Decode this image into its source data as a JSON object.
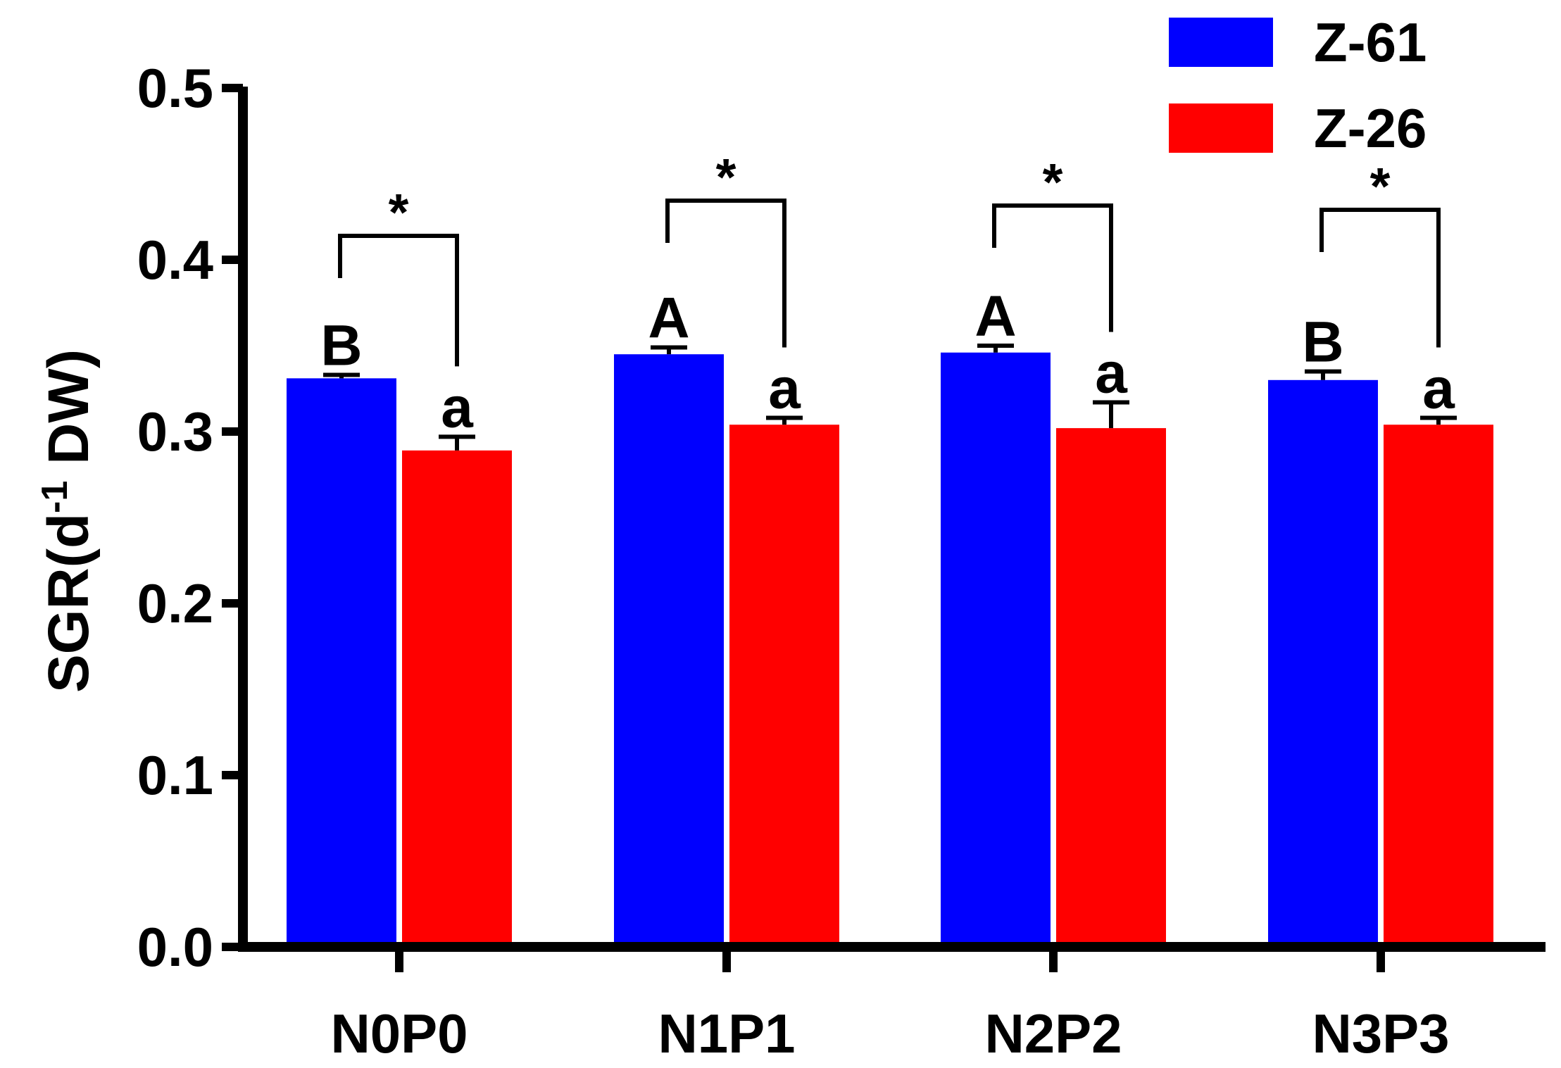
{
  "chart_data": {
    "type": "bar",
    "title": "",
    "xlabel": "",
    "ylabel": "SGR(d-1 DW)",
    "ylabel_parts": {
      "main": "SGR(d",
      "sup": "-1",
      "rest": " DW)"
    },
    "ylim": [
      0,
      0.5
    ],
    "yticks": [
      "0.0",
      "0.1",
      "0.2",
      "0.3",
      "0.4",
      "0.5"
    ],
    "categories": [
      "N0P0",
      "N1P1",
      "N2P2",
      "N3P3"
    ],
    "series": [
      {
        "name": "Z-61",
        "color": "#0000ff",
        "values": [
          0.331,
          0.345,
          0.346,
          0.33
        ],
        "errors": [
          0.002,
          0.004,
          0.004,
          0.005
        ],
        "letters": [
          "B",
          "A",
          "A",
          "B"
        ]
      },
      {
        "name": "Z-26",
        "color": "#ff0000",
        "values": [
          0.289,
          0.304,
          0.302,
          0.304
        ],
        "errors": [
          0.008,
          0.004,
          0.015,
          0.004
        ],
        "letters": [
          "a",
          "a",
          "a",
          "a"
        ]
      }
    ],
    "significance": [
      "*",
      "*",
      "*",
      "*"
    ],
    "legend_position": "top-right",
    "grid": false
  }
}
